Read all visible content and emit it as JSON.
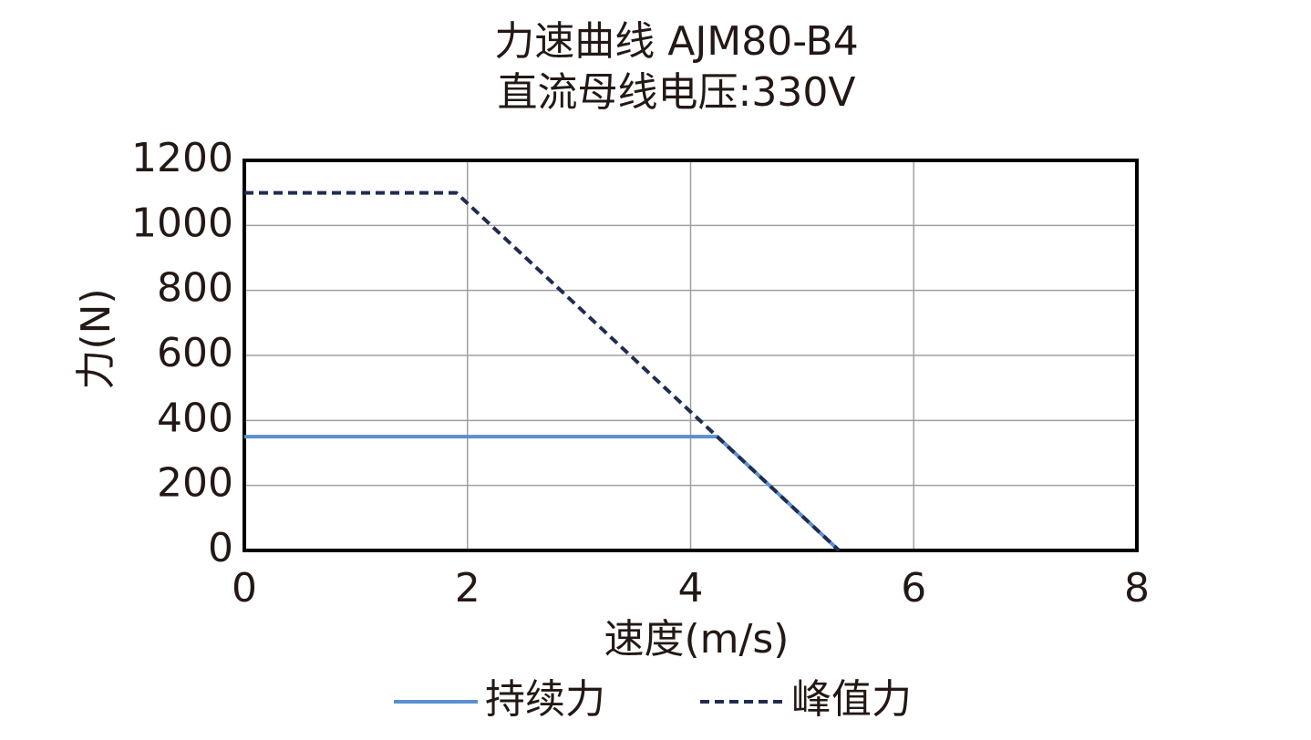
{
  "chart_data": {
    "type": "line",
    "title": "力速曲线 AJM80-B4",
    "subtitle": "直流母线电压:330V",
    "x_label": "速度(m/s)",
    "y_label": "力(N)",
    "xlim": [
      0,
      8
    ],
    "xticks": [
      0,
      2,
      4,
      6,
      8
    ],
    "ylim": [
      0,
      1200
    ],
    "yticks": [
      0,
      200,
      400,
      600,
      800,
      1000,
      1200
    ],
    "grid": true,
    "legend": "bottom",
    "series": [
      {
        "name": "持续力",
        "color": "#5b8fd0",
        "dash": false,
        "x": [
          0,
          4.24,
          5.33
        ],
        "values": [
          350,
          350,
          0
        ]
      },
      {
        "name": "峰值力",
        "color": "#1f2d4f",
        "dash": true,
        "x": [
          0,
          1.9,
          5.33
        ],
        "values": [
          1100,
          1100,
          0
        ]
      }
    ]
  }
}
